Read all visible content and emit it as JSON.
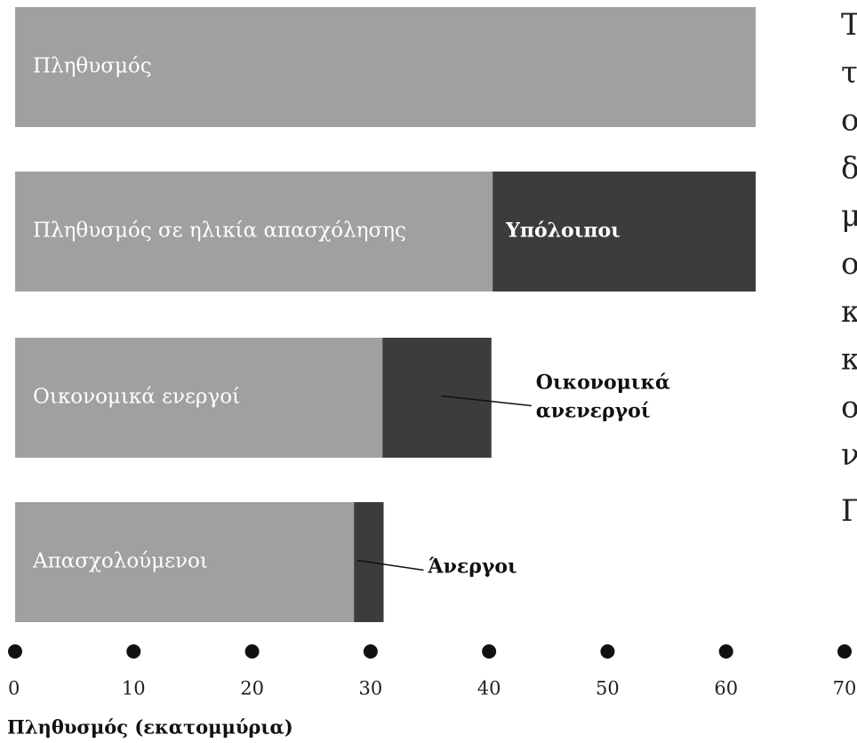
{
  "chart_data": {
    "type": "bar",
    "orientation": "horizontal",
    "categories": [
      "Πληθυσμός",
      "Πληθυσμός σε ηλικία απασχόλησης",
      "Οικονομικά ενεργοί",
      "Απασχολούμενοι"
    ],
    "series": [
      {
        "color": "#a0a0a0",
        "values": [
          62.5,
          40.3,
          31.0,
          28.6
        ]
      },
      {
        "color": "#3c3c3c",
        "values": [
          null,
          22.2,
          9.2,
          2.5
        ]
      }
    ],
    "segment_labels": [
      null,
      [
        "Υπόλοιποι"
      ],
      [
        "Οικονομικά",
        "ανενεργοί"
      ],
      [
        "Άνεργοι"
      ]
    ],
    "xlim": [
      0,
      70
    ],
    "xticks": [
      0,
      10,
      20,
      30,
      40,
      50,
      60,
      70
    ],
    "xlabel": "Πληθυσμός (εκατομμύρια)",
    "side_text": [
      "Τ",
      "τ",
      "ο",
      "δ",
      "μ",
      "ο",
      "κ",
      "κ",
      "ο",
      "ν",
      "Π"
    ]
  }
}
